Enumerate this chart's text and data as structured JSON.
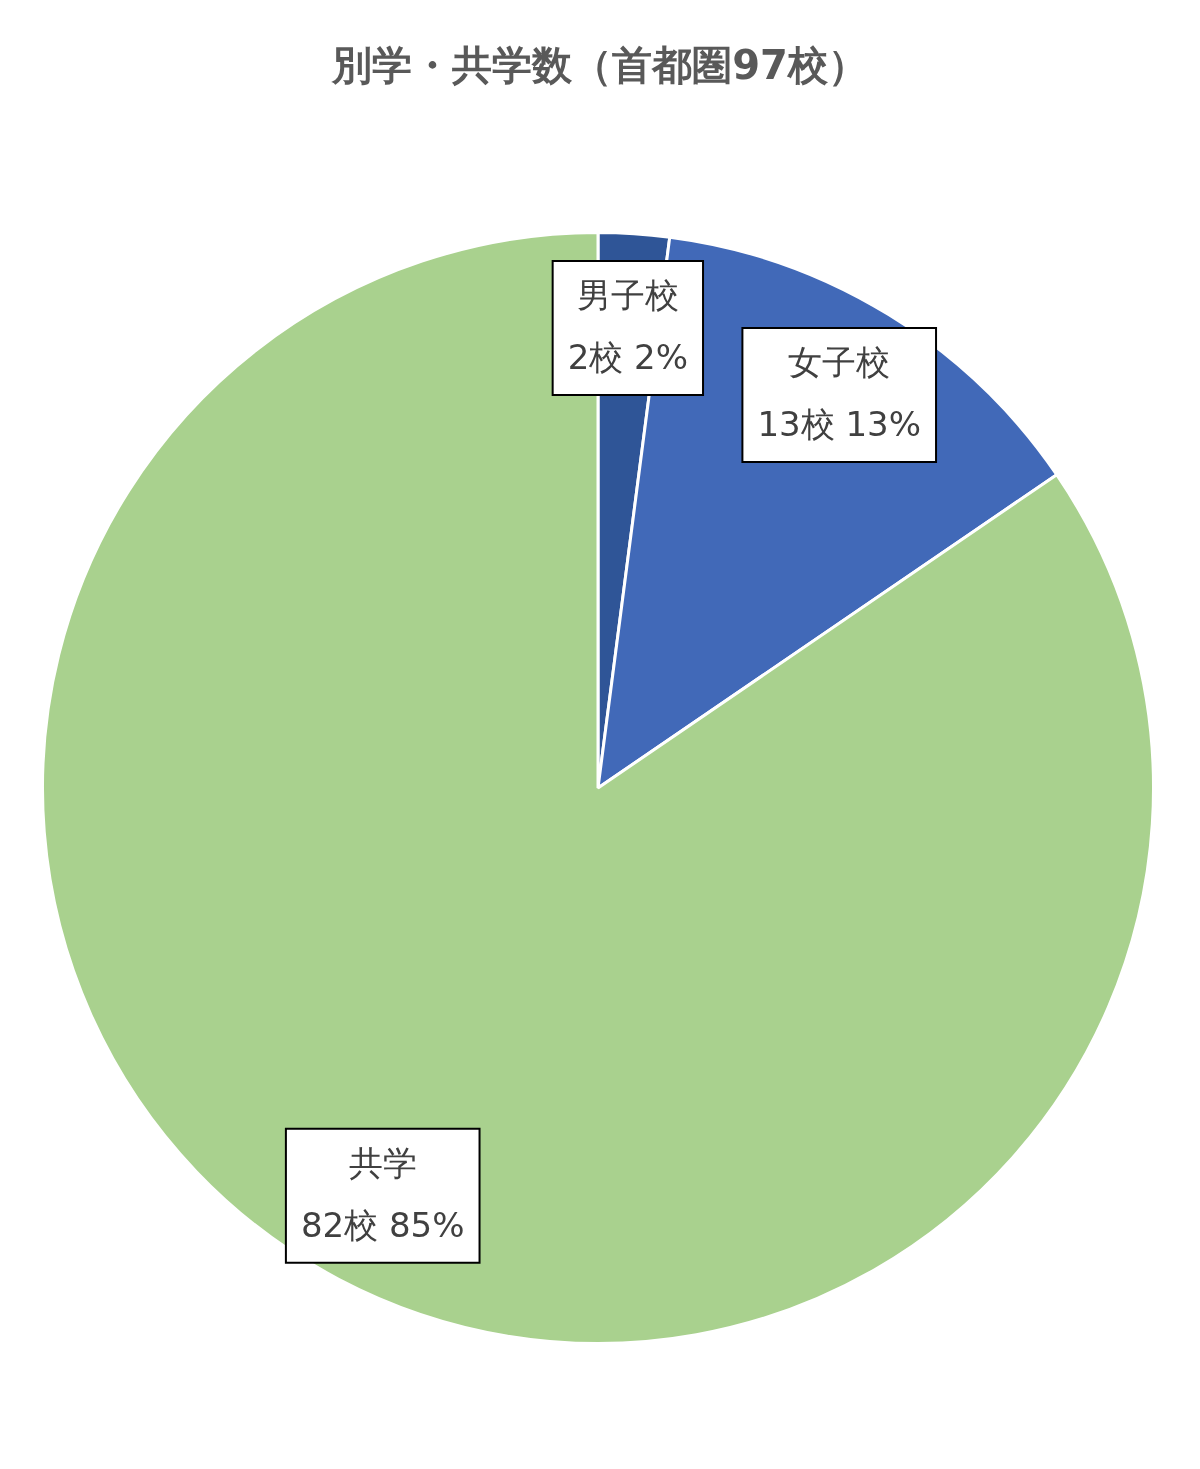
{
  "chart_data": {
    "type": "pie",
    "title": "別学・共学数（首都圏97校）",
    "categories": [
      "男子校",
      "女子校",
      "共学"
    ],
    "values": [
      2,
      13,
      82
    ],
    "colors": [
      "#2f5597",
      "#4169b8",
      "#a9d18e"
    ],
    "value_labels": [
      "2校 2%",
      "13校 13%",
      "82校 85%"
    ]
  }
}
